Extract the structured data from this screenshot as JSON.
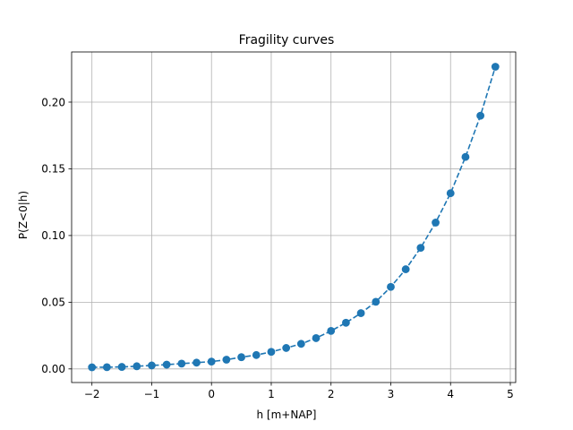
{
  "chart_data": {
    "type": "line",
    "title": "Fragility curves",
    "xlabel": "h [m+NAP]",
    "ylabel": "P(Z<0|h)",
    "xlim": [
      -2.34,
      5.09
    ],
    "ylim": [
      -0.0102,
      0.2376
    ],
    "xticks": [
      -2,
      -1,
      0,
      1,
      2,
      3,
      4,
      5
    ],
    "xtick_labels": [
      "−2",
      "−1",
      "0",
      "1",
      "2",
      "3",
      "4",
      "5"
    ],
    "yticks": [
      0.0,
      0.05,
      0.1,
      0.15,
      0.2
    ],
    "ytick_labels": [
      "0.00",
      "0.05",
      "0.10",
      "0.15",
      "0.20"
    ],
    "grid": true,
    "series": [
      {
        "color": "#1f77b4",
        "line_style": "dashed",
        "marker": "circle",
        "x": [
          -2.0,
          -1.75,
          -1.5,
          -1.25,
          -1.0,
          -0.75,
          -0.5,
          -0.25,
          0.0,
          0.25,
          0.5,
          0.75,
          1.0,
          1.25,
          1.5,
          1.75,
          2.0,
          2.25,
          2.5,
          2.75,
          3.0,
          3.25,
          3.5,
          3.75,
          4.0,
          4.25,
          4.5,
          4.75
        ],
        "y": [
          0.0012,
          0.0013,
          0.0015,
          0.002,
          0.0026,
          0.0032,
          0.004,
          0.0047,
          0.0055,
          0.0069,
          0.0088,
          0.0104,
          0.0128,
          0.0157,
          0.0188,
          0.0231,
          0.0285,
          0.0346,
          0.0418,
          0.0503,
          0.0615,
          0.0747,
          0.0908,
          0.1097,
          0.1317,
          0.1589,
          0.1898,
          0.2265
        ]
      }
    ]
  }
}
